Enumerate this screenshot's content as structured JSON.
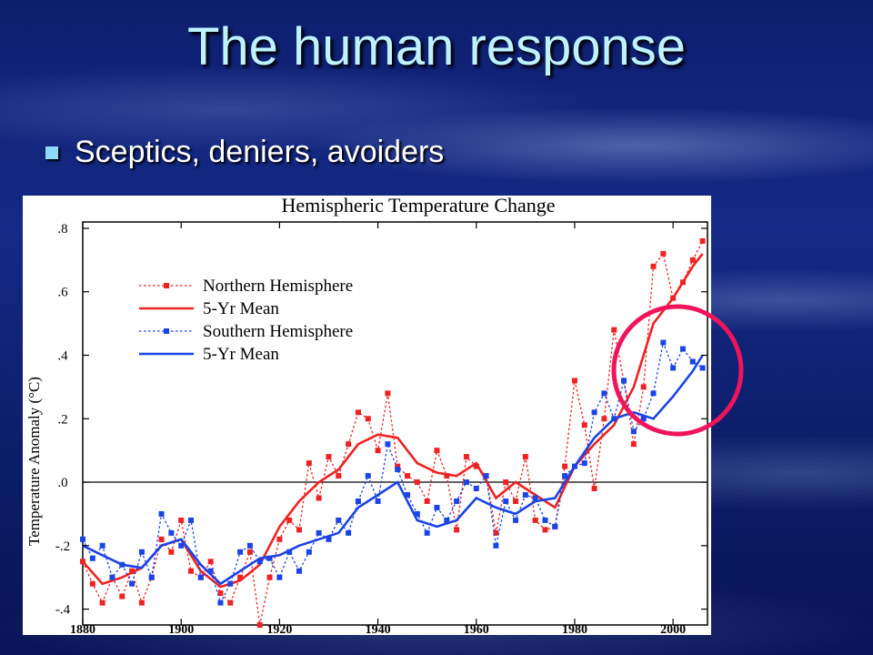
{
  "slide": {
    "title": "The human response",
    "bullet": "Sceptics, deniers, avoiders"
  },
  "colors": {
    "title": "#bff2ff",
    "north": "#ee2222",
    "south": "#1a44e6",
    "highlight": "#f0145a"
  },
  "chart_data": {
    "type": "line",
    "title": "Hemispheric Temperature Change",
    "xlabel": "",
    "ylabel": "Temperature Anomaly (°C)",
    "xlim": [
      1880,
      2007
    ],
    "ylim": [
      -0.45,
      0.82
    ],
    "x_ticks": [
      1880,
      1900,
      1920,
      1940,
      1960,
      1980,
      2000
    ],
    "y_ticks": [
      {
        "value": 0.8,
        "label": ".8"
      },
      {
        "value": 0.6,
        "label": ".6"
      },
      {
        "value": 0.4,
        "label": ".4"
      },
      {
        "value": 0.2,
        "label": ".2"
      },
      {
        "value": 0.0,
        "label": ".0"
      },
      {
        "value": -0.2,
        "label": "-.2"
      },
      {
        "value": -0.4,
        "label": "-.4"
      }
    ],
    "zero_line": true,
    "legend_position": "top-left",
    "series": [
      {
        "name": "Northern Hemisphere",
        "style": "dotted-markers",
        "color": "#ee2222",
        "x": [
          1880,
          1882,
          1884,
          1886,
          1888,
          1890,
          1892,
          1894,
          1896,
          1898,
          1900,
          1902,
          1904,
          1906,
          1908,
          1910,
          1912,
          1914,
          1916,
          1918,
          1920,
          1922,
          1924,
          1926,
          1928,
          1930,
          1932,
          1934,
          1936,
          1938,
          1940,
          1942,
          1944,
          1946,
          1948,
          1950,
          1952,
          1954,
          1956,
          1958,
          1960,
          1962,
          1964,
          1966,
          1968,
          1970,
          1972,
          1974,
          1976,
          1978,
          1980,
          1982,
          1984,
          1986,
          1988,
          1990,
          1992,
          1994,
          1996,
          1998,
          2000,
          2002,
          2004,
          2006
        ],
        "y": [
          -0.25,
          -0.32,
          -0.38,
          -0.3,
          -0.36,
          -0.28,
          -0.38,
          -0.3,
          -0.18,
          -0.22,
          -0.12,
          -0.28,
          -0.3,
          -0.25,
          -0.35,
          -0.38,
          -0.3,
          -0.22,
          -0.45,
          -0.3,
          -0.18,
          -0.12,
          -0.15,
          0.06,
          -0.05,
          0.08,
          0.02,
          0.12,
          0.22,
          0.2,
          0.1,
          0.28,
          0.05,
          0.02,
          0.0,
          -0.06,
          0.1,
          0.02,
          -0.15,
          0.08,
          0.05,
          0.02,
          -0.16,
          0.0,
          -0.06,
          0.08,
          -0.12,
          -0.15,
          -0.14,
          0.05,
          0.32,
          0.18,
          -0.02,
          0.2,
          0.48,
          0.32,
          0.12,
          0.3,
          0.68,
          0.72,
          0.58,
          0.63,
          0.7,
          0.76
        ]
      },
      {
        "name": "5-Yr Mean",
        "style": "solid",
        "color": "#ee2222",
        "x": [
          1880,
          1884,
          1888,
          1892,
          1896,
          1900,
          1904,
          1908,
          1912,
          1916,
          1920,
          1924,
          1928,
          1932,
          1936,
          1940,
          1944,
          1948,
          1952,
          1956,
          1960,
          1964,
          1968,
          1972,
          1976,
          1980,
          1984,
          1988,
          1992,
          1996,
          2000,
          2004,
          2006
        ],
        "y": [
          -0.25,
          -0.32,
          -0.3,
          -0.27,
          -0.2,
          -0.18,
          -0.28,
          -0.33,
          -0.31,
          -0.26,
          -0.14,
          -0.06,
          0.0,
          0.04,
          0.12,
          0.15,
          0.14,
          0.06,
          0.03,
          0.02,
          0.06,
          -0.05,
          0.0,
          -0.04,
          -0.08,
          0.05,
          0.12,
          0.18,
          0.3,
          0.5,
          0.58,
          0.68,
          0.72
        ]
      },
      {
        "name": "Southern Hemisphere",
        "style": "dotted-markers",
        "color": "#1a44e6",
        "x": [
          1880,
          1882,
          1884,
          1886,
          1888,
          1890,
          1892,
          1894,
          1896,
          1898,
          1900,
          1902,
          1904,
          1906,
          1908,
          1910,
          1912,
          1914,
          1916,
          1918,
          1920,
          1922,
          1924,
          1926,
          1928,
          1930,
          1932,
          1934,
          1936,
          1938,
          1940,
          1942,
          1944,
          1946,
          1948,
          1950,
          1952,
          1954,
          1956,
          1958,
          1960,
          1962,
          1964,
          1966,
          1968,
          1970,
          1972,
          1974,
          1976,
          1978,
          1980,
          1982,
          1984,
          1986,
          1988,
          1990,
          1992,
          1994,
          1996,
          1998,
          2000,
          2002,
          2004,
          2006
        ],
        "y": [
          -0.18,
          -0.24,
          -0.2,
          -0.3,
          -0.26,
          -0.32,
          -0.22,
          -0.3,
          -0.1,
          -0.16,
          -0.2,
          -0.12,
          -0.3,
          -0.28,
          -0.38,
          -0.32,
          -0.22,
          -0.2,
          -0.25,
          -0.24,
          -0.3,
          -0.22,
          -0.28,
          -0.22,
          -0.16,
          -0.18,
          -0.12,
          -0.16,
          -0.06,
          0.02,
          -0.06,
          0.12,
          0.04,
          -0.04,
          -0.1,
          -0.16,
          -0.08,
          -0.12,
          -0.06,
          0.0,
          -0.02,
          0.02,
          -0.2,
          -0.06,
          -0.12,
          -0.04,
          -0.05,
          -0.12,
          -0.14,
          0.02,
          0.05,
          0.06,
          0.22,
          0.28,
          0.2,
          0.32,
          0.16,
          0.2,
          0.28,
          0.44,
          0.36,
          0.42,
          0.38,
          0.36
        ]
      },
      {
        "name": "5-Yr Mean",
        "style": "solid",
        "color": "#1a44e6",
        "x": [
          1880,
          1884,
          1888,
          1892,
          1896,
          1900,
          1904,
          1908,
          1912,
          1916,
          1920,
          1924,
          1928,
          1932,
          1936,
          1940,
          1944,
          1948,
          1952,
          1956,
          1960,
          1964,
          1968,
          1972,
          1976,
          1980,
          1984,
          1988,
          1992,
          1996,
          2000,
          2004,
          2006
        ],
        "y": [
          -0.2,
          -0.23,
          -0.26,
          -0.27,
          -0.2,
          -0.18,
          -0.26,
          -0.32,
          -0.28,
          -0.24,
          -0.23,
          -0.2,
          -0.18,
          -0.16,
          -0.08,
          -0.04,
          0.0,
          -0.12,
          -0.14,
          -0.12,
          -0.05,
          -0.08,
          -0.1,
          -0.06,
          -0.05,
          0.05,
          0.14,
          0.2,
          0.22,
          0.2,
          0.27,
          0.35,
          0.4
        ]
      }
    ]
  }
}
